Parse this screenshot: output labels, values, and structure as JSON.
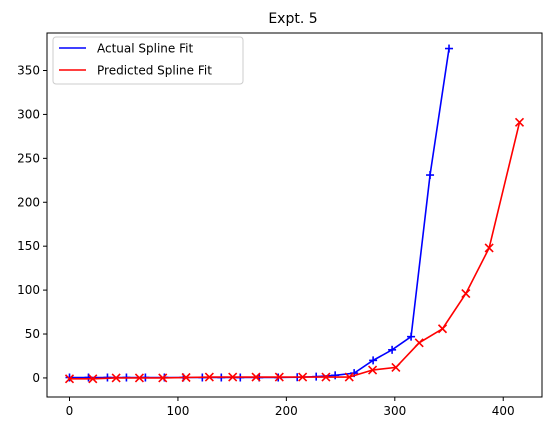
{
  "chart_data": {
    "type": "line",
    "title": "Expt. 5",
    "xlabel": "",
    "ylabel": "",
    "xlim": [
      -20.75,
      435.75
    ],
    "ylim": [
      -21.7,
      392.7
    ],
    "xticks": [
      0,
      100,
      200,
      300,
      400
    ],
    "yticks": [
      0,
      50,
      100,
      150,
      200,
      250,
      300,
      350
    ],
    "grid": false,
    "legend_position": "top-left",
    "series": [
      {
        "name": "Actual Spline Fit",
        "color": "#0000ff",
        "marker": "+",
        "x": [
          0,
          17.5,
          35,
          52.5,
          70,
          87.5,
          105,
          122.5,
          140,
          157.5,
          175,
          192.5,
          210,
          227.5,
          245,
          262.5,
          280,
          297.5,
          315,
          332.5,
          350
        ],
        "y": [
          0.5,
          0.5,
          0.5,
          0.5,
          0.5,
          0.5,
          0.5,
          0.5,
          0.5,
          0.5,
          0.5,
          0.5,
          0.8,
          1.5,
          3,
          5.5,
          20,
          32,
          47,
          231,
          375
        ]
      },
      {
        "name": "Predicted Spline Fit",
        "color": "#ff0000",
        "marker": "x",
        "x": [
          0,
          21.5,
          43,
          64.5,
          86,
          107.5,
          129,
          150.5,
          172,
          193.5,
          215,
          236.5,
          258,
          279.5,
          301,
          322.5,
          344,
          365.5,
          387,
          415
        ],
        "y": [
          -1,
          -1,
          0,
          0,
          0,
          0.5,
          1,
          1,
          1,
          1,
          1,
          1,
          1,
          9,
          12,
          40,
          56,
          96,
          148,
          291
        ]
      }
    ]
  }
}
